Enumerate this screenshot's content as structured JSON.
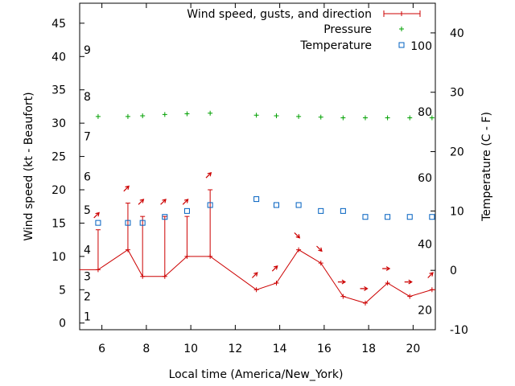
{
  "chart_data": {
    "type": "line",
    "xlabel": "Local time (America/New_York)",
    "ylabel_left": "Wind speed (kt - Beaufort)",
    "ylabel_right": "Temperature (C - F)",
    "xlim": [
      5,
      21
    ],
    "ylim_left": [
      -1,
      48
    ],
    "ylim_right": [
      -10,
      45
    ],
    "x_ticks": [
      6,
      8,
      10,
      12,
      14,
      16,
      18,
      20
    ],
    "y_left_ticks": [
      0,
      5,
      10,
      15,
      20,
      25,
      30,
      35,
      40,
      45
    ],
    "y_right_ticks": [
      -10,
      0,
      10,
      20,
      30,
      40
    ],
    "beaufort_labels": [
      {
        "text": "1",
        "y": 1
      },
      {
        "text": "2",
        "y": 4
      },
      {
        "text": "3",
        "y": 7
      },
      {
        "text": "4",
        "y": 11
      },
      {
        "text": "5",
        "y": 17
      },
      {
        "text": "6",
        "y": 22
      },
      {
        "text": "7",
        "y": 28
      },
      {
        "text": "8",
        "y": 34
      },
      {
        "text": "9",
        "y": 41
      }
    ],
    "fahrenheit_labels": [
      {
        "text": "20",
        "t": -6.7
      },
      {
        "text": "40",
        "t": 4.4
      },
      {
        "text": "60",
        "t": 15.6
      },
      {
        "text": "80",
        "t": 26.7
      },
      {
        "text": "100",
        "t": 37.8
      }
    ],
    "legend": [
      {
        "label": "Wind speed, gusts, and direction",
        "color": "#cc0000"
      },
      {
        "label": "Pressure",
        "color": "#00a000"
      },
      {
        "label": "Temperature",
        "color": "#0060c0"
      }
    ],
    "series": [
      {
        "name": "Wind speed",
        "x": [
          5,
          5.83,
          7.17,
          7.83,
          8.83,
          9.83,
          10.87,
          12.95,
          13.85,
          14.85,
          15.85,
          16.85,
          17.85,
          18.85,
          19.85,
          20.85,
          21
        ],
        "y": [
          8,
          8,
          11,
          7,
          7,
          10,
          10,
          5,
          6,
          11,
          9,
          4,
          3,
          6,
          4,
          5,
          5
        ],
        "gust": [
          null,
          14,
          18,
          16,
          16,
          16,
          20,
          null,
          null,
          null,
          null,
          null,
          null,
          null,
          null,
          null,
          null
        ],
        "direction_deg": [
          null,
          225,
          225,
          225,
          225,
          225,
          225,
          225,
          225,
          315,
          315,
          270,
          270,
          270,
          270,
          225,
          null
        ]
      },
      {
        "name": "Pressure",
        "axis": "left",
        "x": [
          5.83,
          7.17,
          7.83,
          8.83,
          9.83,
          10.87,
          12.95,
          13.85,
          14.85,
          15.85,
          16.85,
          17.85,
          18.85,
          19.85,
          20.85
        ],
        "values": [
          31,
          31,
          31.1,
          31.3,
          31.4,
          31.5,
          31.2,
          31.1,
          31,
          30.9,
          30.8,
          30.8,
          30.8,
          30.8,
          30.8
        ]
      },
      {
        "name": "Temperature",
        "axis": "right",
        "x": [
          5.83,
          7.17,
          7.83,
          8.83,
          9.83,
          10.87,
          12.95,
          13.85,
          14.85,
          15.85,
          16.85,
          17.85,
          18.85,
          19.85,
          20.85
        ],
        "values": [
          8,
          8,
          8,
          9,
          10,
          11,
          12,
          11,
          11,
          10,
          10,
          9,
          9,
          9,
          9
        ]
      }
    ]
  }
}
